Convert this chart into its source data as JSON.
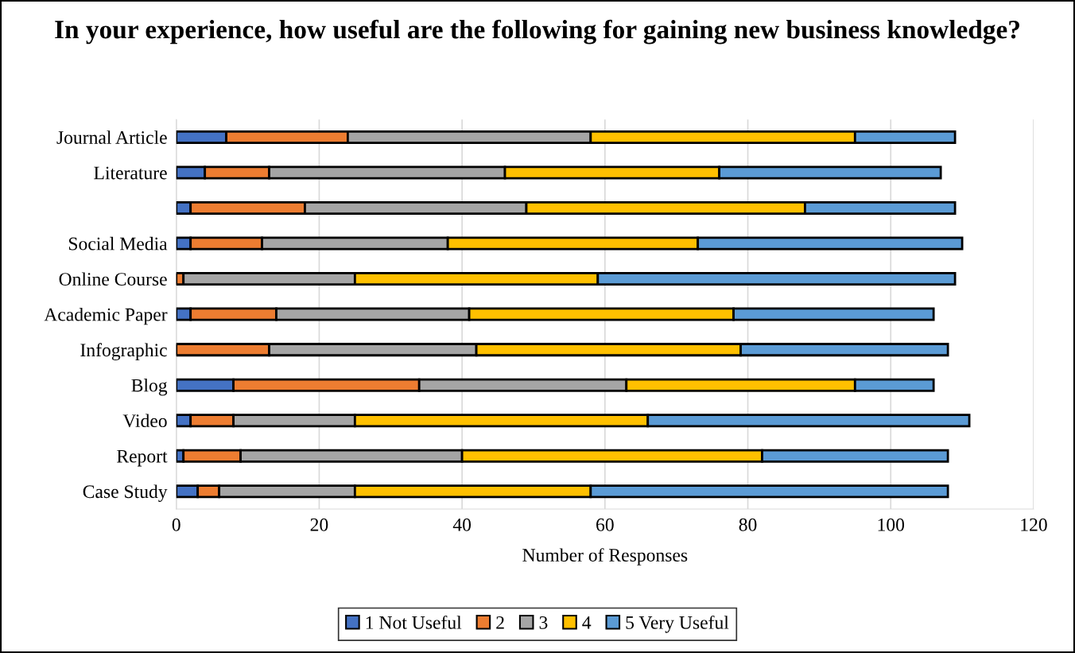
{
  "chart_data": {
    "type": "bar",
    "orientation": "horizontal",
    "stacked": true,
    "title": "In your experience, how useful are the following for gaining new business knowledge?",
    "xlabel": "Number of Responses",
    "categories": [
      "Journal Article",
      "Literature",
      null,
      "Social Media",
      "Online Course",
      "Academic Paper",
      "Infographic",
      "Blog",
      "Video",
      "Report",
      "Case Study"
    ],
    "series": [
      {
        "name": "1 Not Useful",
        "color": "#4472c4",
        "values": [
          7,
          4,
          2,
          2,
          0,
          2,
          0,
          8,
          2,
          1,
          3
        ]
      },
      {
        "name": "2",
        "color": "#ed7d31",
        "values": [
          17,
          9,
          16,
          10,
          1,
          12,
          13,
          26,
          6,
          8,
          3
        ]
      },
      {
        "name": "3",
        "color": "#a5a5a5",
        "values": [
          34,
          33,
          31,
          26,
          24,
          27,
          29,
          29,
          17,
          31,
          19
        ]
      },
      {
        "name": "4",
        "color": "#ffc000",
        "values": [
          37,
          30,
          39,
          35,
          34,
          37,
          37,
          32,
          41,
          42,
          33
        ]
      },
      {
        "name": "5 Very Useful",
        "color": "#5b9bd5",
        "values": [
          14,
          31,
          21,
          37,
          50,
          28,
          29,
          11,
          45,
          26,
          50
        ]
      }
    ],
    "xlim": [
      0,
      120
    ],
    "xticks": [
      0,
      20,
      40,
      60,
      80,
      100,
      120
    ],
    "grid": "x",
    "legend": "bottom"
  }
}
